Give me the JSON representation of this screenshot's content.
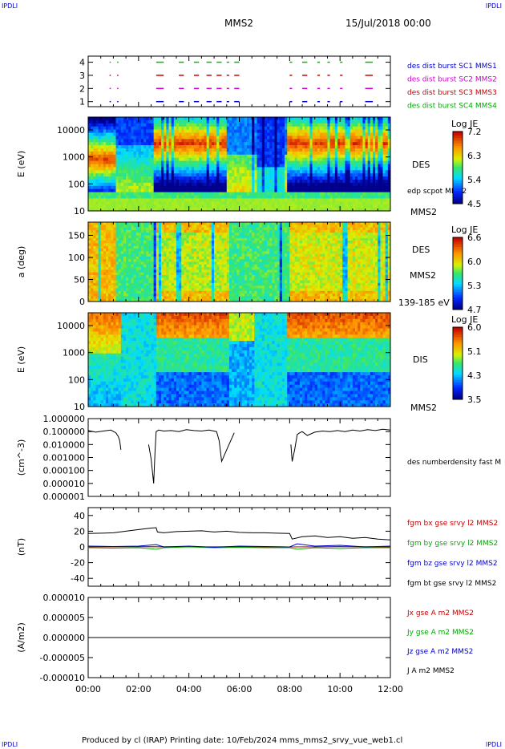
{
  "header": {
    "corner_tl": "IPDLI",
    "corner_tr": "IPDLI",
    "corner_bl": "IPDLI",
    "corner_br": "IPDLI",
    "title": "MMS2",
    "date": "15/Jul/2018 00:00"
  },
  "footer": {
    "text": "Produced by cl (IRAP)   Printing date: 10/Feb/2024   mms_mms2_srvy_vue_web1.cl"
  },
  "chart_data": [
    {
      "type": "scatter",
      "panel": "burst",
      "ylabel": "",
      "yticks": [
        "4",
        "3",
        "2",
        "1"
      ],
      "xlim_hours": [
        0,
        12
      ],
      "legend": [
        {
          "text": "des dist burst SC1 MMS1",
          "color": "#0000cc"
        },
        {
          "text": "des dist burst SC2 MMS2",
          "color": "#cc00cc"
        },
        {
          "text": "des dist burst SC3 MMS3",
          "color": "#cc0000"
        },
        {
          "text": "des dist burst SC4 MMS4",
          "color": "#00aa00"
        }
      ],
      "series": [
        {
          "level": 4,
          "color": "#00bb00",
          "intervals": [
            [
              0.85,
              0.9
            ],
            [
              1.15,
              1.2
            ],
            [
              2.7,
              3.0
            ],
            [
              3.6,
              3.8
            ],
            [
              4.2,
              4.4
            ],
            [
              4.7,
              4.9
            ],
            [
              5.1,
              5.3
            ],
            [
              5.5,
              5.6
            ],
            [
              5.8,
              6.0
            ],
            [
              8.0,
              8.1
            ],
            [
              8.5,
              8.7
            ],
            [
              9.1,
              9.2
            ],
            [
              9.5,
              9.6
            ],
            [
              10.0,
              10.1
            ],
            [
              11.0,
              11.3
            ]
          ]
        },
        {
          "level": 3,
          "color": "#cc0000",
          "intervals": [
            [
              0.85,
              0.9
            ],
            [
              1.15,
              1.2
            ],
            [
              2.7,
              3.0
            ],
            [
              3.6,
              3.8
            ],
            [
              4.2,
              4.4
            ],
            [
              4.7,
              4.9
            ],
            [
              5.1,
              5.3
            ],
            [
              5.5,
              5.6
            ],
            [
              5.8,
              6.0
            ],
            [
              8.0,
              8.1
            ],
            [
              8.5,
              8.7
            ],
            [
              9.1,
              9.2
            ],
            [
              9.5,
              9.6
            ],
            [
              10.0,
              10.1
            ],
            [
              11.0,
              11.3
            ]
          ]
        },
        {
          "level": 2,
          "color": "#cc00cc",
          "intervals": [
            [
              0.85,
              0.9
            ],
            [
              1.15,
              1.2
            ],
            [
              2.7,
              3.0
            ],
            [
              3.6,
              3.8
            ],
            [
              4.2,
              4.4
            ],
            [
              4.7,
              4.9
            ],
            [
              5.1,
              5.3
            ],
            [
              5.5,
              5.6
            ],
            [
              5.8,
              6.0
            ],
            [
              8.0,
              8.1
            ],
            [
              8.5,
              8.7
            ],
            [
              9.1,
              9.2
            ],
            [
              9.5,
              9.6
            ],
            [
              10.0,
              10.1
            ],
            [
              11.0,
              11.3
            ]
          ]
        },
        {
          "level": 1,
          "color": "#0000cc",
          "intervals": [
            [
              0.85,
              0.9
            ],
            [
              1.15,
              1.2
            ],
            [
              2.7,
              3.0
            ],
            [
              3.6,
              3.8
            ],
            [
              4.2,
              4.4
            ],
            [
              4.7,
              4.9
            ],
            [
              5.1,
              5.3
            ],
            [
              5.5,
              5.6
            ],
            [
              5.8,
              6.0
            ],
            [
              8.0,
              8.1
            ],
            [
              8.5,
              8.7
            ],
            [
              9.1,
              9.2
            ],
            [
              9.5,
              9.6
            ],
            [
              10.0,
              10.1
            ],
            [
              11.0,
              11.3
            ]
          ]
        }
      ]
    },
    {
      "type": "heatmap",
      "panel": "des-energy",
      "ylabel": "E (eV)",
      "scale": "log",
      "ylim": [
        10,
        30000
      ],
      "yticks": [
        "10000",
        "1000",
        "100",
        "10"
      ],
      "label": "DES",
      "sub_labels": [
        "edp scpot MMS2",
        "MMS2"
      ],
      "colorbar": {
        "title": "Log JE",
        "ticks": [
          "7.2",
          "6.3",
          "5.4",
          "4.5"
        ],
        "range": [
          4.5,
          7.2
        ]
      }
    },
    {
      "type": "heatmap",
      "panel": "des-pitch",
      "ylabel": "a (deg)",
      "ylim": [
        0,
        180
      ],
      "yticks": [
        "150",
        "100",
        "50",
        "0"
      ],
      "label": "DES",
      "sub_labels": [
        "MMS2",
        "139-185 eV"
      ],
      "colorbar": {
        "title": "Log JE",
        "ticks": [
          "6.6",
          "6.0",
          "5.3",
          "4.7"
        ],
        "range": [
          4.7,
          6.6
        ]
      }
    },
    {
      "type": "heatmap",
      "panel": "dis-energy",
      "ylabel": "E (eV)",
      "scale": "log",
      "ylim": [
        10,
        30000
      ],
      "yticks": [
        "10000",
        "1000",
        "100",
        "10"
      ],
      "label": "DIS",
      "sub_labels": [
        "MMS2"
      ],
      "colorbar": {
        "title": "Log JE",
        "ticks": [
          "6.0",
          "5.1",
          "4.3",
          "3.5"
        ],
        "range": [
          3.5,
          6.0
        ]
      }
    },
    {
      "type": "line",
      "panel": "density",
      "ylabel": "(cm^-3)",
      "scale": "log",
      "ylim": [
        1e-06,
        1.0
      ],
      "yticks": [
        "1.000000",
        "0.100000",
        "0.010000",
        "0.001000",
        "0.000100",
        "0.000010",
        "0.000001"
      ],
      "legend": [
        {
          "text": "des numberdensity fast M",
          "color": "#000000"
        }
      ],
      "series": [
        {
          "name": "des numberdensity fast M",
          "color": "#000000",
          "x": [
            0.0,
            0.3,
            0.6,
            0.9,
            1.1,
            1.2,
            1.25,
            1.3,
            1.35,
            2.3,
            2.4,
            2.5,
            2.6,
            2.65,
            2.7,
            2.8,
            3.0,
            3.3,
            3.6,
            3.9,
            4.2,
            4.5,
            4.8,
            5.1,
            5.2,
            5.3,
            5.5,
            5.8,
            6.0,
            6.3,
            6.6,
            6.9,
            7.2,
            7.5,
            7.8,
            8.05,
            8.1,
            8.2,
            8.3,
            8.4,
            8.5,
            8.7,
            9.0,
            9.3,
            9.6,
            9.9,
            10.2,
            10.5,
            10.8,
            11.1,
            11.4,
            11.7,
            12.0
          ],
          "y": [
            0.12,
            0.09,
            0.11,
            0.13,
            0.08,
            0.04,
            0.02,
            0.004,
            null,
            null,
            0.01,
            0.0008,
            1e-05,
            0.002,
            0.1,
            0.13,
            0.11,
            0.12,
            0.1,
            0.14,
            0.12,
            0.11,
            0.13,
            0.1,
            0.02,
            0.0005,
            0.004,
            0.08,
            null,
            null,
            null,
            null,
            null,
            null,
            null,
            0.01,
            0.0005,
            0.004,
            0.06,
            0.08,
            0.1,
            0.05,
            0.09,
            0.11,
            0.1,
            0.12,
            0.1,
            0.13,
            0.11,
            0.14,
            0.12,
            0.15,
            0.13
          ]
        }
      ]
    },
    {
      "type": "line",
      "panel": "magnetic-field",
      "ylabel": "(nT)",
      "ylim": [
        -50,
        50
      ],
      "yticks": [
        "40",
        "20",
        "0",
        "-20",
        "-40"
      ],
      "legend": [
        {
          "text": "fgm bx gse srvy l2 MMS2",
          "color": "#cc0000"
        },
        {
          "text": "fgm by gse srvy l2 MMS2",
          "color": "#00aa00"
        },
        {
          "text": "fgm bz gse srvy l2 MMS2",
          "color": "#0000cc"
        },
        {
          "text": "fgm bt gse srvy l2 MMS2",
          "color": "#000000"
        }
      ],
      "series": [
        {
          "name": "fgm bt gse srvy l2 MMS2",
          "color": "#000000",
          "x": [
            0.0,
            0.5,
            1.0,
            1.5,
            2.0,
            2.5,
            2.7,
            2.75,
            3.0,
            3.5,
            4.0,
            4.5,
            5.0,
            5.5,
            6.0,
            6.5,
            7.0,
            7.5,
            8.0,
            8.1,
            8.5,
            9.0,
            9.5,
            10.0,
            10.5,
            11.0,
            11.5,
            12.0
          ],
          "y": [
            17,
            17.5,
            18,
            20,
            22,
            24,
            24.5,
            19,
            18,
            19.5,
            20,
            20.5,
            19,
            20,
            18.5,
            18,
            18,
            17.5,
            17,
            10,
            13,
            14,
            12,
            13,
            11,
            12,
            10,
            9
          ]
        },
        {
          "name": "fgm bz gse srvy l2 MMS2",
          "color": "#0000cc",
          "x": [
            0.0,
            1.0,
            2.0,
            2.7,
            3.0,
            4.0,
            5.0,
            6.0,
            7.0,
            8.0,
            8.3,
            9.0,
            10.0,
            11.0,
            12.0
          ],
          "y": [
            1,
            0.5,
            1,
            3,
            0,
            1,
            -0.5,
            1,
            0.5,
            0,
            4,
            1,
            2,
            0,
            1
          ]
        },
        {
          "name": "fgm by gse srvy l2 MMS2",
          "color": "#00aa00",
          "x": [
            0.0,
            1.0,
            2.0,
            2.7,
            3.0,
            4.0,
            5.0,
            6.0,
            7.0,
            8.0,
            8.3,
            9.0,
            10.0,
            11.0,
            12.0
          ],
          "y": [
            -1,
            -1.5,
            -1,
            -3,
            -1,
            0,
            -1,
            -0.5,
            -1,
            -1,
            -3,
            -1,
            -2,
            -1,
            -1
          ]
        },
        {
          "name": "fgm bx gse srvy l2 MMS2",
          "color": "#cc0000",
          "x": [
            0.0,
            2.0,
            4.0,
            6.0,
            8.0,
            10.0,
            12.0
          ],
          "y": [
            0,
            0.5,
            0,
            0.3,
            0,
            0.5,
            0
          ]
        }
      ]
    },
    {
      "type": "line",
      "panel": "current",
      "ylabel": "(A/m2)",
      "ylim": [
        -1e-05,
        1e-05
      ],
      "yticks": [
        "0.000010",
        "0.000005",
        "0.000000",
        "-0.000005",
        "-0.000010"
      ],
      "legend": [
        {
          "text": "Jx gse A m2 MMS2",
          "color": "#cc0000"
        },
        {
          "text": "Jy gse A m2 MMS2",
          "color": "#00aa00"
        },
        {
          "text": "Jz gse A m2 MMS2",
          "color": "#0000cc"
        },
        {
          "text": "J A m2 MMS2",
          "color": "#000000"
        }
      ],
      "series": [
        {
          "name": "J A m2 MMS2",
          "color": "#000000",
          "x": [
            0,
            12
          ],
          "y": [
            0,
            0
          ]
        }
      ]
    }
  ],
  "xaxis": {
    "ticks": [
      {
        "hour": 0,
        "label": "00:00"
      },
      {
        "hour": 2,
        "label": "02:00"
      },
      {
        "hour": 4,
        "label": "04:00"
      },
      {
        "hour": 6,
        "label": "06:00"
      },
      {
        "hour": 8,
        "label": "08:00"
      },
      {
        "hour": 10,
        "label": "10:00"
      },
      {
        "hour": 12,
        "label": "12:00"
      }
    ]
  }
}
